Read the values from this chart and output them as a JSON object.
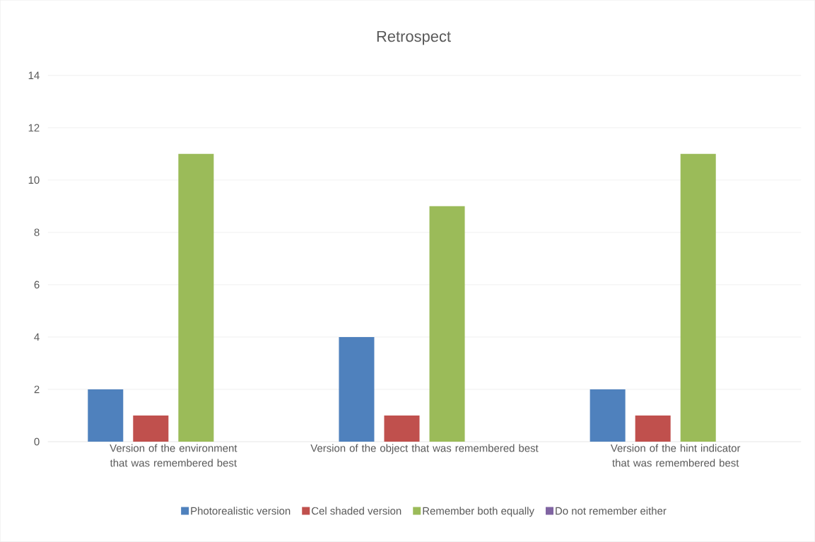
{
  "chart_data": {
    "type": "bar",
    "title": "Retrospect",
    "categories": [
      "Version of the environment that was remembered best",
      "Version of the object that was remembered best",
      "Version of the hint indicator that was remembered best"
    ],
    "series": [
      {
        "name": "Photorealistic version",
        "color": "#4f81bd",
        "values": [
          2,
          4,
          2
        ]
      },
      {
        "name": "Cel shaded version",
        "color": "#c0504d",
        "values": [
          1,
          1,
          1
        ]
      },
      {
        "name": "Remember both equally",
        "color": "#9bbb59",
        "values": [
          11,
          9,
          11
        ]
      },
      {
        "name": "Do not remember either",
        "color": "#8064a2",
        "values": [
          0,
          0,
          0
        ]
      }
    ],
    "ylim": [
      0,
      14
    ],
    "yticks": [
      0,
      2,
      4,
      6,
      8,
      10,
      12,
      14
    ],
    "grid": "y",
    "legend": "bottom"
  }
}
